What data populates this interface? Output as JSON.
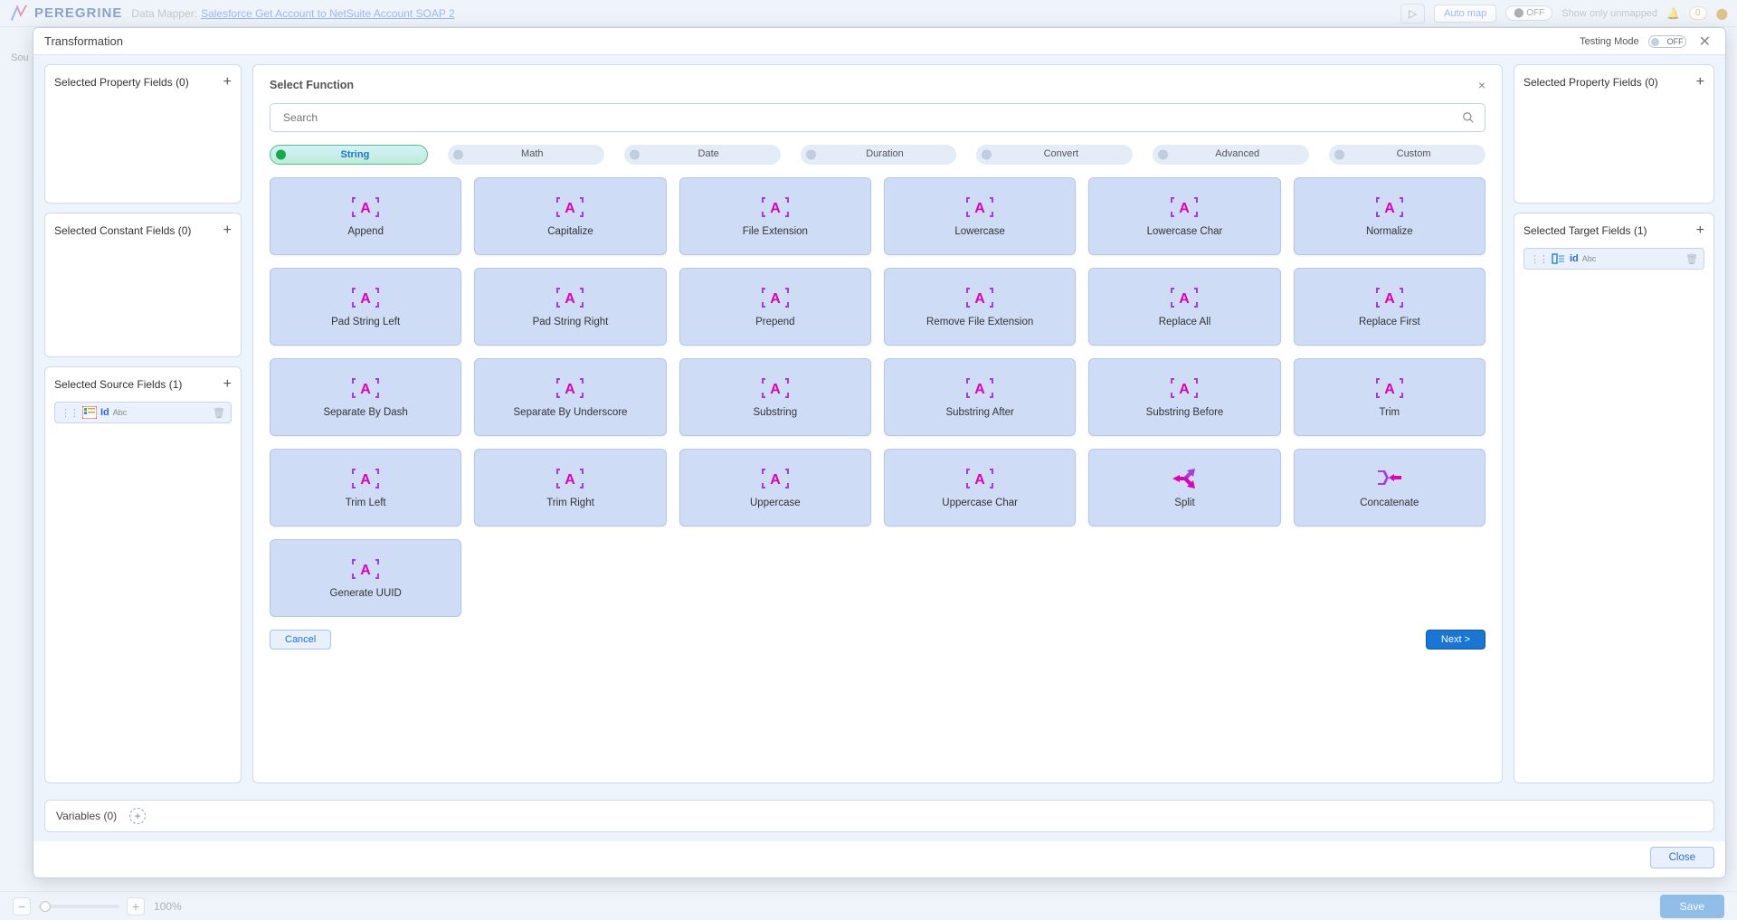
{
  "app": {
    "brand": "PEREGRINE",
    "area": "Data Mapper:",
    "mapping_name": "Salesforce Get Account to NetSuite Account SOAP 2",
    "auto_map": "Auto map",
    "toggle_off": "OFF",
    "show_unmapped": "Show only unmapped",
    "alert_count": "0",
    "save": "Save",
    "zoom_pct": "100%",
    "src_label": "Sou"
  },
  "modal": {
    "title": "Transformation",
    "testing_label": "Testing Mode",
    "testing_state": "OFF",
    "close_btn": "Close"
  },
  "left": {
    "property": {
      "title": "Selected Property Fields (0)"
    },
    "constant": {
      "title": "Selected Constant Fields (0)"
    },
    "source": {
      "title": "Selected Source Fields (1)",
      "field": {
        "label": "Id",
        "type": "Abc"
      }
    }
  },
  "right": {
    "property": {
      "title": "Selected Property Fields (0)"
    },
    "target": {
      "title": "Selected Target Fields (1)",
      "field": {
        "label": "id",
        "type": "Abc"
      }
    }
  },
  "func": {
    "title": "Select Function",
    "search_placeholder": "Search",
    "categories": [
      {
        "label": "String",
        "active": true
      },
      {
        "label": "Math",
        "active": false
      },
      {
        "label": "Date",
        "active": false
      },
      {
        "label": "Duration",
        "active": false
      },
      {
        "label": "Convert",
        "active": false
      },
      {
        "label": "Advanced",
        "active": false
      },
      {
        "label": "Custom",
        "active": false
      }
    ],
    "functions": [
      {
        "label": "Append",
        "icon": "A"
      },
      {
        "label": "Capitalize",
        "icon": "A"
      },
      {
        "label": "File Extension",
        "icon": "A"
      },
      {
        "label": "Lowercase",
        "icon": "A"
      },
      {
        "label": "Lowercase Char",
        "icon": "A"
      },
      {
        "label": "Normalize",
        "icon": "A"
      },
      {
        "label": "Pad String Left",
        "icon": "A"
      },
      {
        "label": "Pad String Right",
        "icon": "A"
      },
      {
        "label": "Prepend",
        "icon": "A"
      },
      {
        "label": "Remove File Extension",
        "icon": "A"
      },
      {
        "label": "Replace All",
        "icon": "A"
      },
      {
        "label": "Replace First",
        "icon": "A"
      },
      {
        "label": "Separate By Dash",
        "icon": "A"
      },
      {
        "label": "Separate By Underscore",
        "icon": "A"
      },
      {
        "label": "Substring",
        "icon": "A"
      },
      {
        "label": "Substring After",
        "icon": "A"
      },
      {
        "label": "Substring Before",
        "icon": "A"
      },
      {
        "label": "Trim",
        "icon": "A"
      },
      {
        "label": "Trim Left",
        "icon": "A"
      },
      {
        "label": "Trim Right",
        "icon": "A"
      },
      {
        "label": "Uppercase",
        "icon": "A"
      },
      {
        "label": "Uppercase Char",
        "icon": "A"
      },
      {
        "label": "Split",
        "icon": "split"
      },
      {
        "label": "Concatenate",
        "icon": "concat"
      },
      {
        "label": "Generate UUID",
        "icon": "A"
      }
    ],
    "cancel": "Cancel",
    "next": "Next >"
  },
  "vars": {
    "title": "Variables (0)"
  },
  "colors": {
    "icon_main": "#a83ae0",
    "icon_accent": "#e000b8"
  }
}
